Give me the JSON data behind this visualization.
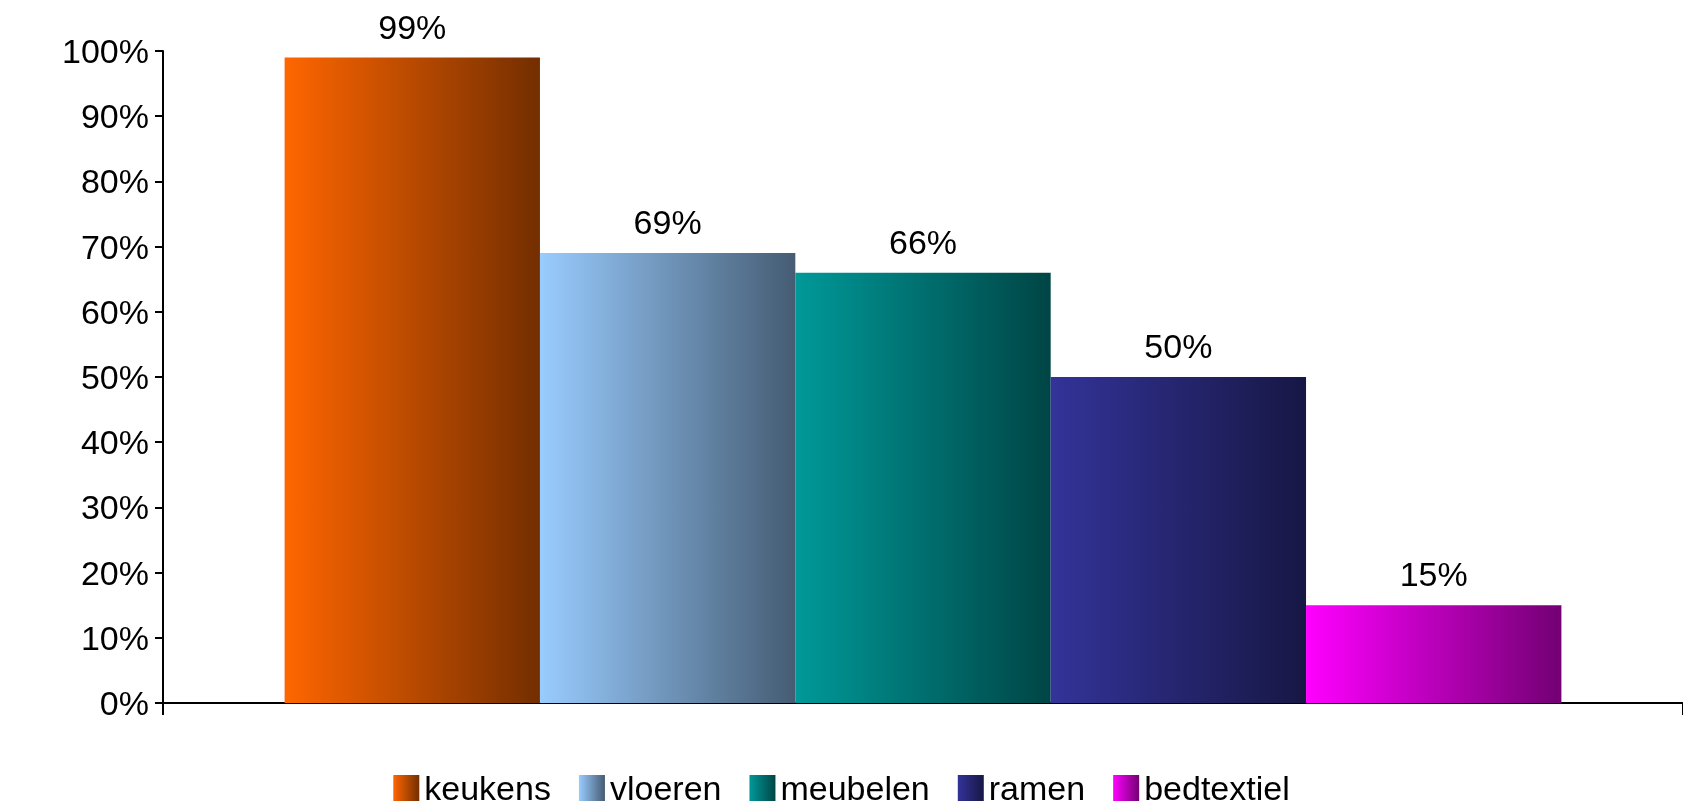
{
  "chart_data": {
    "type": "bar",
    "categories": [
      null
    ],
    "series": [
      {
        "name": "keukens",
        "color": "#ff6600",
        "values": [
          99
        ],
        "value_labels": [
          "99%"
        ]
      },
      {
        "name": "vloeren",
        "color": "#99ccff",
        "values": [
          69
        ],
        "value_labels": [
          "69%"
        ]
      },
      {
        "name": "meubelen",
        "color": "#009999",
        "values": [
          66
        ],
        "value_labels": [
          "66%"
        ]
      },
      {
        "name": "ramen",
        "color": "#333399",
        "values": [
          50
        ],
        "value_labels": [
          "50%"
        ]
      },
      {
        "name": "bedtextiel",
        "color": "#ff00ff",
        "values": [
          15
        ],
        "value_labels": [
          "15%"
        ]
      }
    ],
    "ylim": [
      0,
      100
    ],
    "yticks": [
      {
        "value": 0,
        "label": "0%"
      },
      {
        "value": 10,
        "label": "10%"
      },
      {
        "value": 20,
        "label": "20%"
      },
      {
        "value": 30,
        "label": "30%"
      },
      {
        "value": 40,
        "label": "40%"
      },
      {
        "value": 50,
        "label": "50%"
      },
      {
        "value": 60,
        "label": "60%"
      },
      {
        "value": 70,
        "label": "70%"
      },
      {
        "value": 80,
        "label": "80%"
      },
      {
        "value": 90,
        "label": "90%"
      },
      {
        "value": 100,
        "label": "100%"
      }
    ],
    "grid": false,
    "legend": "bottom"
  }
}
